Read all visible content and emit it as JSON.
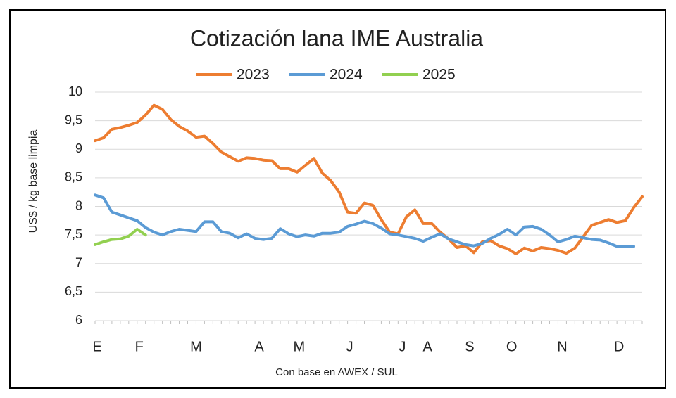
{
  "chart_data": {
    "type": "line",
    "title": "Cotización lana IME Australia",
    "y_label": "US$ / kg base limpia",
    "x_label": "Con base en AWEX / SUL",
    "x": [
      0,
      2,
      4,
      6,
      8,
      10,
      12,
      14,
      16,
      18,
      20,
      22,
      24,
      26,
      28,
      30,
      32,
      34,
      36,
      38,
      40,
      42,
      44,
      46,
      48,
      50,
      52,
      54,
      56,
      58,
      60,
      62,
      64,
      66,
      68,
      70,
      72,
      74,
      76,
      78,
      80,
      82,
      84,
      86,
      88,
      90,
      92,
      94,
      96,
      98,
      100,
      102,
      104,
      106,
      108,
      110,
      112,
      114,
      116,
      118,
      120,
      122,
      124,
      126,
      128,
      130
    ],
    "series": [
      {
        "name": "2023",
        "color": "#ed7d31",
        "values": [
          9.15,
          9.2,
          9.35,
          9.38,
          9.42,
          9.47,
          9.6,
          9.77,
          9.7,
          9.52,
          9.4,
          9.32,
          9.21,
          9.23,
          9.1,
          8.95,
          8.87,
          8.79,
          8.85,
          8.84,
          8.81,
          8.8,
          8.66,
          8.66,
          8.6,
          8.72,
          8.84,
          8.58,
          8.45,
          8.25,
          7.9,
          7.88,
          8.06,
          8.02,
          7.77,
          7.55,
          7.52,
          7.82,
          7.94,
          7.7,
          7.7,
          7.55,
          7.43,
          7.28,
          7.31,
          7.19,
          7.38,
          7.4,
          7.31,
          7.26,
          7.17,
          7.27,
          7.22,
          7.28,
          7.26,
          7.23,
          7.18,
          7.27,
          7.47,
          7.67,
          7.72,
          7.77,
          7.72,
          7.75,
          7.98,
          8.17
        ]
      },
      {
        "name": "2024",
        "color": "#5b9bd5",
        "values": [
          8.2,
          8.15,
          7.9,
          7.85,
          7.8,
          7.75,
          7.63,
          7.55,
          7.5,
          7.56,
          7.6,
          7.58,
          7.56,
          7.73,
          7.73,
          7.56,
          7.53,
          7.45,
          7.52,
          7.44,
          7.42,
          7.44,
          7.61,
          7.52,
          7.47,
          7.5,
          7.48,
          7.53,
          7.53,
          7.55,
          7.65,
          7.69,
          7.74,
          7.7,
          7.62,
          7.52,
          7.5,
          7.47,
          7.44,
          7.39,
          7.46,
          7.52,
          7.43,
          7.38,
          7.33,
          7.31,
          7.35,
          7.44,
          7.51,
          7.6,
          7.5,
          7.64,
          7.65,
          7.6,
          7.5,
          7.38,
          7.42,
          7.48,
          7.45,
          7.42,
          7.41,
          7.36,
          7.3,
          7.3,
          7.3,
          null
        ]
      },
      {
        "name": "2025",
        "color": "#92d050",
        "values": [
          7.33,
          7.38,
          7.42,
          7.43,
          7.48,
          7.6,
          7.5,
          null,
          null,
          null,
          null,
          null,
          null,
          null,
          null,
          null,
          null,
          null,
          null,
          null,
          null,
          null,
          null,
          null,
          null,
          null,
          null,
          null,
          null,
          null,
          null,
          null,
          null,
          null,
          null,
          null,
          null,
          null,
          null,
          null,
          null,
          null,
          null,
          null,
          null,
          null,
          null,
          null,
          null,
          null,
          null,
          null,
          null,
          null,
          null,
          null,
          null,
          null,
          null,
          null,
          null,
          null,
          null,
          null,
          null,
          null
        ]
      }
    ],
    "xlim": [
      0,
      130
    ],
    "xticks": [
      {
        "value": 0.5,
        "label": "E"
      },
      {
        "value": 10.5,
        "label": "F"
      },
      {
        "value": 24,
        "label": "M"
      },
      {
        "value": 39,
        "label": "A"
      },
      {
        "value": 48.5,
        "label": "M"
      },
      {
        "value": 60.5,
        "label": "J"
      },
      {
        "value": 73,
        "label": "J"
      },
      {
        "value": 79,
        "label": "A"
      },
      {
        "value": 89,
        "label": "S"
      },
      {
        "value": 99,
        "label": "O"
      },
      {
        "value": 111,
        "label": "N"
      },
      {
        "value": 124.5,
        "label": "D"
      }
    ],
    "ylim": [
      6,
      10
    ],
    "yticks": [
      6,
      {
        "value": 6.5,
        "label": "6,5"
      },
      7,
      {
        "value": 7.5,
        "label": "7,5"
      },
      8,
      {
        "value": 8.5,
        "label": "8,5"
      },
      9,
      {
        "value": 9.5,
        "label": "9,5"
      },
      10
    ],
    "grid": true,
    "legend": "top"
  }
}
